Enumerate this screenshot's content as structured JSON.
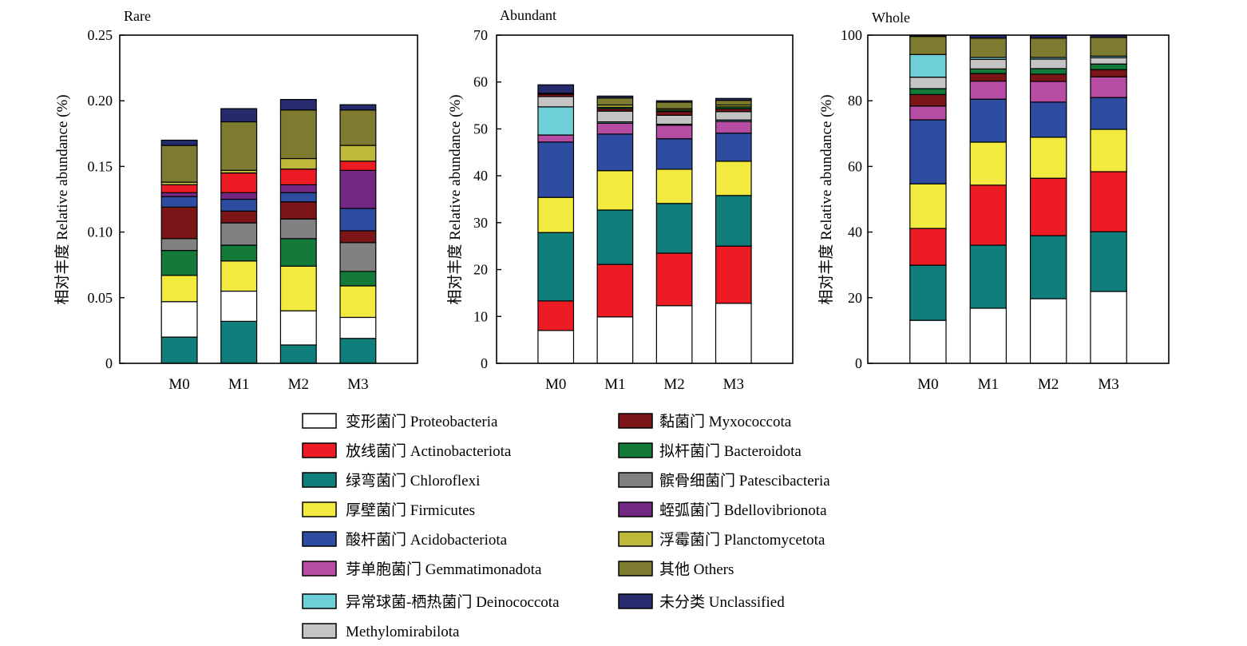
{
  "legend": [
    {
      "label": "变形菌门 Proteobacteria",
      "color": "#FFFFFF"
    },
    {
      "label": "放线菌门 Actinobacteriota",
      "color": "#ED1C24"
    },
    {
      "label": "绿弯菌门 Chloroflexi",
      "color": "#107F7C"
    },
    {
      "label": "厚壁菌门 Firmicutes",
      "color": "#F2EA3F"
    },
    {
      "label": "酸杆菌门 Acidobacteriota",
      "color": "#2E4DA1"
    },
    {
      "label": "芽单胞菌门 Gemmatimonadota",
      "color": "#B64CA4"
    },
    {
      "label": "异常球菌-栖热菌门 Deinococcota",
      "color": "#6ECFD9"
    },
    {
      "label": "Methylomirabilota",
      "color": "#C4C4C4"
    },
    {
      "label": "黏菌门 Myxococcota",
      "color": "#7B1518"
    },
    {
      "label": "拟杆菌门 Bacteroidota",
      "color": "#137A3A"
    },
    {
      "label": "髌骨细菌门 Patescibacteria",
      "color": "#818181"
    },
    {
      "label": "蛭弧菌门 Bdellovibrionota",
      "color": "#732984"
    },
    {
      "label": "浮霉菌门 Planctomycetota",
      "color": "#BDB93A"
    },
    {
      "label": "其他 Others",
      "color": "#7D7B30"
    },
    {
      "label": "未分类 Unclassified",
      "color": "#262B6D"
    }
  ],
  "chart_data": [
    {
      "type": "bar",
      "stacked": true,
      "title": "Rare",
      "ylabel": "相对丰度 Relative abundance (%)",
      "categories": [
        "M0",
        "M1",
        "M2",
        "M3"
      ],
      "ylim": [
        0,
        0.25
      ],
      "yticks": [
        "0",
        "0.05",
        "0.10",
        "0.15",
        "0.20",
        "0.25"
      ],
      "grid": false,
      "series": [
        {
          "legend": 2,
          "values": [
            0.02,
            0.032,
            0.014,
            0.019
          ]
        },
        {
          "legend": 0,
          "values": [
            0.027,
            0.023,
            0.026,
            0.016
          ]
        },
        {
          "legend": 3,
          "values": [
            0.02,
            0.023,
            0.034,
            0.024
          ]
        },
        {
          "legend": 9,
          "values": [
            0.019,
            0.012,
            0.021,
            0.011
          ]
        },
        {
          "legend": 10,
          "values": [
            0.009,
            0.017,
            0.015,
            0.022
          ]
        },
        {
          "legend": 8,
          "values": [
            0.024,
            0.009,
            0.013,
            0.009
          ]
        },
        {
          "legend": 4,
          "values": [
            0.008,
            0.009,
            0.007,
            0.017
          ]
        },
        {
          "legend": 11,
          "values": [
            0.003,
            0.005,
            0.006,
            0.029
          ]
        },
        {
          "legend": 1,
          "values": [
            0.006,
            0.015,
            0.012,
            0.007
          ]
        },
        {
          "legend": 12,
          "values": [
            0.002,
            0.002,
            0.008,
            0.012
          ]
        },
        {
          "legend": 13,
          "values": [
            0.028,
            0.037,
            0.037,
            0.027
          ]
        },
        {
          "legend": 14,
          "values": [
            0.004,
            0.01,
            0.008,
            0.004
          ]
        }
      ]
    },
    {
      "type": "bar",
      "stacked": true,
      "title": "Abundant",
      "ylabel": "相对丰度 Relative abundance (%)",
      "categories": [
        "M0",
        "M1",
        "M2",
        "M3"
      ],
      "ylim": [
        0,
        70
      ],
      "yticks": [
        "0",
        "10",
        "20",
        "30",
        "40",
        "50",
        "60",
        "70"
      ],
      "grid": false,
      "series": [
        {
          "legend": 0,
          "values": [
            7.0,
            9.9,
            12.3,
            12.8
          ]
        },
        {
          "legend": 1,
          "values": [
            6.3,
            11.2,
            11.2,
            12.2
          ]
        },
        {
          "legend": 2,
          "values": [
            14.6,
            11.6,
            10.6,
            10.8
          ]
        },
        {
          "legend": 3,
          "values": [
            7.5,
            8.4,
            7.3,
            7.3
          ]
        },
        {
          "legend": 4,
          "values": [
            11.8,
            7.8,
            6.5,
            6.0
          ]
        },
        {
          "legend": 5,
          "values": [
            1.5,
            2.3,
            2.9,
            2.5
          ]
        },
        {
          "legend": 6,
          "values": [
            6.0,
            0.3,
            0.2,
            0.3
          ]
        },
        {
          "legend": 7,
          "values": [
            2.2,
            2.3,
            1.9,
            1.8
          ]
        },
        {
          "legend": 8,
          "values": [
            0.5,
            0.5,
            0.8,
            0.6
          ]
        },
        {
          "legend": 9,
          "values": [
            0.0,
            0.3,
            0.3,
            0.4
          ]
        },
        {
          "legend": 12,
          "values": [
            0.0,
            0.5,
            0.3,
            0.4
          ]
        },
        {
          "legend": 13,
          "values": [
            0.2,
            1.5,
            1.4,
            1.0
          ]
        },
        {
          "legend": 14,
          "values": [
            1.8,
            0.4,
            0.3,
            0.4
          ]
        }
      ]
    },
    {
      "type": "bar",
      "stacked": true,
      "title": "Whole",
      "ylabel": "相对丰度 Relative abundance (%)",
      "categories": [
        "M0",
        "M1",
        "M2",
        "M3"
      ],
      "ylim": [
        0,
        100
      ],
      "yticks": [
        "0",
        "20",
        "40",
        "60",
        "80",
        "100"
      ],
      "grid": false,
      "series": [
        {
          "legend": 0,
          "values": [
            13.1,
            16.8,
            19.7,
            21.9
          ]
        },
        {
          "legend": 2,
          "values": [
            16.8,
            19.2,
            19.2,
            18.2
          ]
        },
        {
          "legend": 1,
          "values": [
            11.2,
            18.3,
            17.5,
            18.3
          ]
        },
        {
          "legend": 3,
          "values": [
            13.6,
            13.1,
            12.5,
            12.9
          ]
        },
        {
          "legend": 4,
          "values": [
            19.5,
            13.1,
            10.7,
            9.7
          ]
        },
        {
          "legend": 5,
          "values": [
            4.2,
            5.5,
            6.3,
            6.3
          ]
        },
        {
          "legend": 8,
          "values": [
            3.5,
            2.3,
            2.2,
            2.2
          ]
        },
        {
          "legend": 9,
          "values": [
            1.8,
            1.4,
            1.7,
            1.7
          ]
        },
        {
          "legend": 7,
          "values": [
            3.5,
            2.9,
            2.9,
            1.9
          ]
        },
        {
          "legend": 6,
          "values": [
            6.9,
            0.6,
            0.5,
            0.5
          ]
        },
        {
          "legend": 13,
          "values": [
            5.5,
            5.9,
            5.9,
            5.7
          ]
        },
        {
          "legend": 14,
          "values": [
            0.4,
            0.9,
            0.9,
            0.7
          ]
        }
      ]
    }
  ]
}
